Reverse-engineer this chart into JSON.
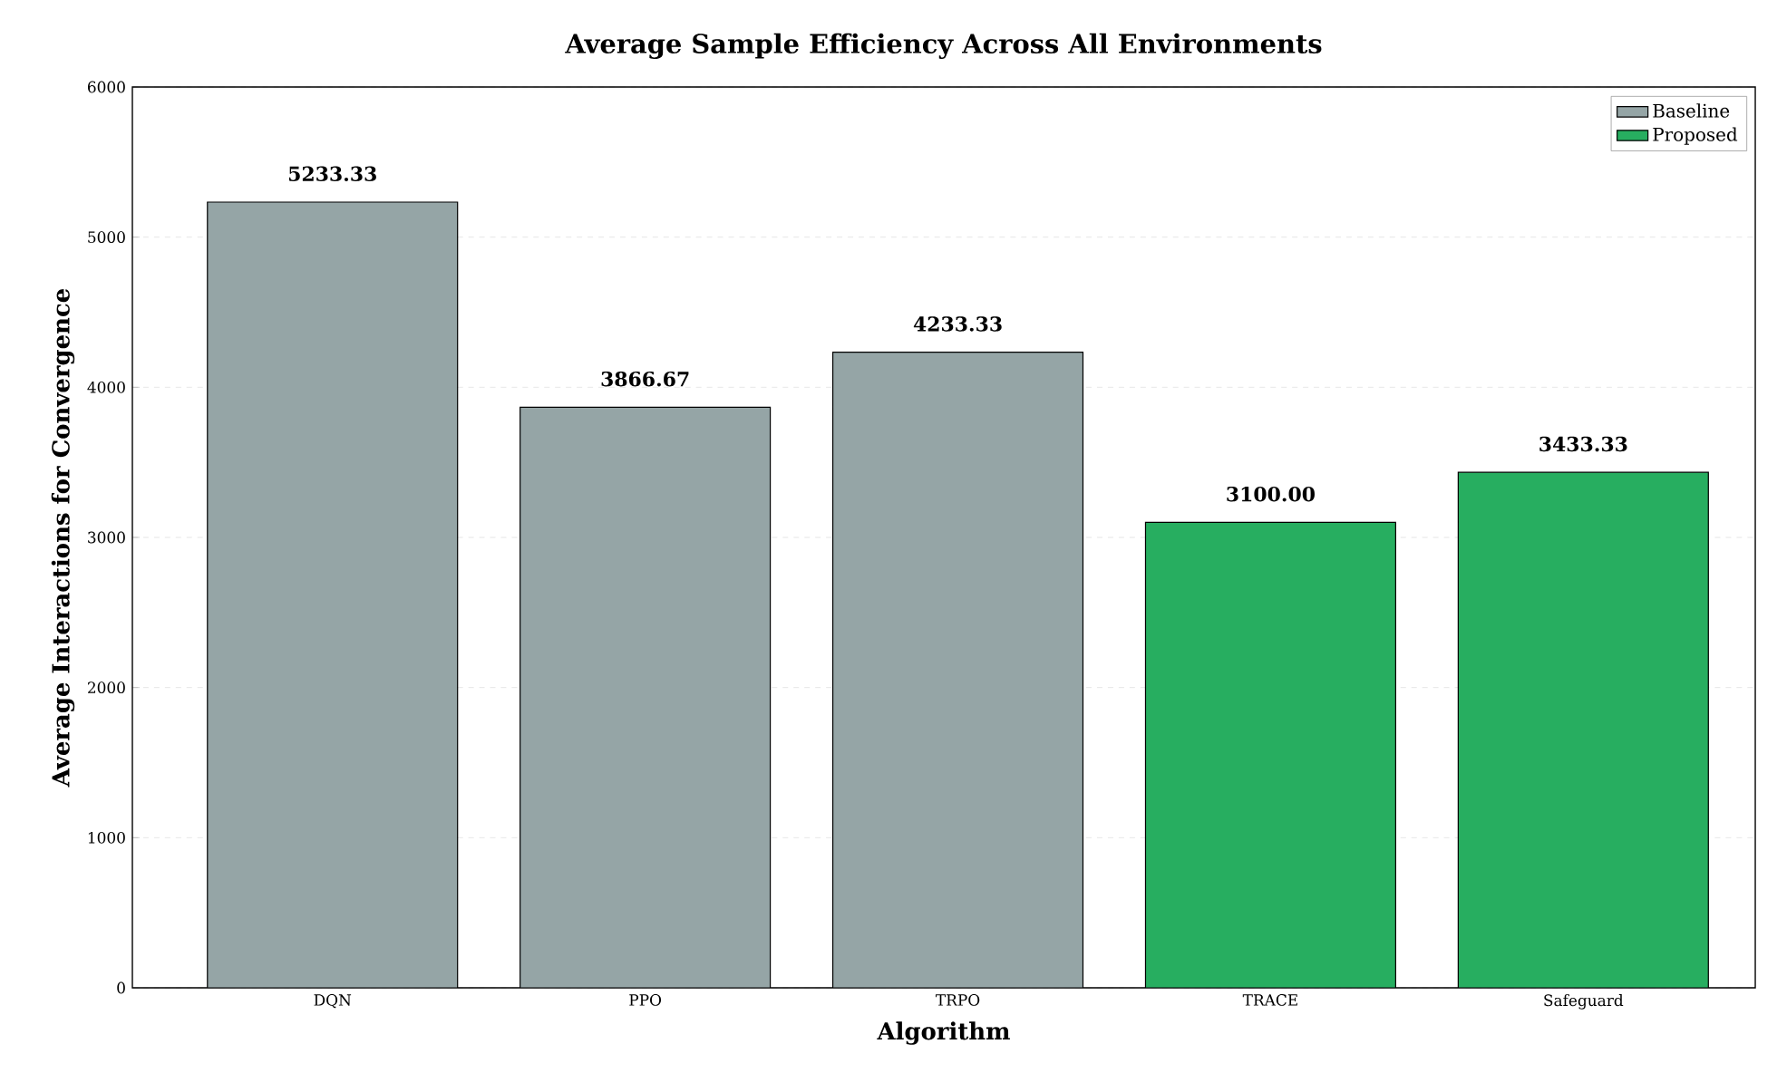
{
  "chart_data": {
    "type": "bar",
    "title": "Average Sample Efficiency Across All Environments",
    "xlabel": "Algorithm",
    "ylabel": "Average Interactions for Convergence",
    "categories": [
      "DQN",
      "PPO",
      "TRPO",
      "TRACE",
      "Safeguard"
    ],
    "series": [
      {
        "name": "Baseline",
        "color": "#95a5a6",
        "values": [
          5233.33,
          3866.67,
          4233.33,
          null,
          null
        ],
        "value_labels": [
          "5233.33",
          "3866.67",
          "4233.33",
          null,
          null
        ]
      },
      {
        "name": "Proposed",
        "color": "#27ae60",
        "values": [
          null,
          null,
          null,
          3100,
          3433.33
        ],
        "value_labels": [
          null,
          null,
          null,
          "3100.00",
          "3433.33"
        ]
      }
    ],
    "ylim": [
      0,
      6000
    ],
    "yticks": [
      0,
      1000,
      2000,
      3000,
      4000,
      5000,
      6000
    ],
    "grid": "y",
    "legend": "top right"
  }
}
